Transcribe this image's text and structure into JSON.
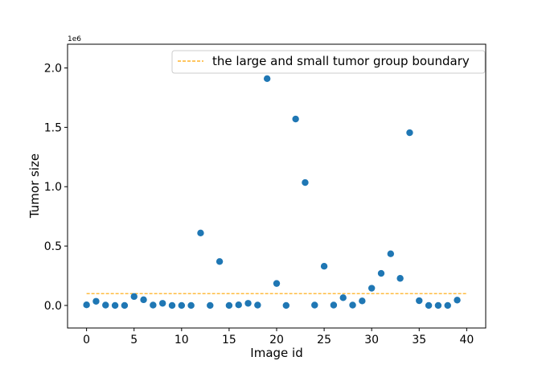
{
  "chart_data": {
    "type": "scatter",
    "xlabel": "Image id",
    "ylabel": "Tumor size",
    "y_offset_label": "1e6",
    "xlim": [
      -2,
      42
    ],
    "ylim": [
      -0.19,
      2.2
    ],
    "x_ticks": [
      0,
      5,
      10,
      15,
      20,
      25,
      30,
      35,
      40
    ],
    "y_ticks": [
      0.0,
      0.5,
      1.0,
      1.5,
      2.0
    ],
    "x_tick_labels": [
      "0",
      "5",
      "10",
      "15",
      "20",
      "25",
      "30",
      "35",
      "40"
    ],
    "y_tick_labels": [
      "0.0",
      "0.5",
      "1.0",
      "1.5",
      "2.0"
    ],
    "grid": false,
    "legend_position": "top-right",
    "series": [
      {
        "type": "scatter",
        "color": "#1f77b4",
        "x": [
          0,
          1,
          2,
          3,
          4,
          5,
          6,
          7,
          8,
          9,
          10,
          11,
          12,
          13,
          14,
          15,
          16,
          17,
          18,
          19,
          20,
          21,
          22,
          23,
          24,
          25,
          26,
          27,
          28,
          29,
          30,
          31,
          32,
          33,
          34,
          35,
          36,
          37,
          38,
          39
        ],
        "values": [
          0.005,
          0.035,
          0.003,
          0.0,
          0.0,
          0.075,
          0.048,
          0.003,
          0.018,
          0.0,
          0.0,
          0.0,
          0.61,
          0.0,
          0.37,
          0.0,
          0.005,
          0.018,
          0.003,
          1.91,
          0.185,
          0.0,
          1.57,
          1.035,
          0.003,
          0.33,
          0.003,
          0.065,
          0.003,
          0.038,
          0.145,
          0.27,
          0.435,
          0.228,
          1.455,
          0.04,
          0.0,
          0.0,
          0.0,
          0.045
        ]
      },
      {
        "type": "line",
        "name": "the large and small tumor group boundary",
        "color": "#ffa500",
        "dashed": true,
        "x": [
          0,
          40
        ],
        "values": [
          0.1,
          0.1
        ]
      }
    ]
  }
}
